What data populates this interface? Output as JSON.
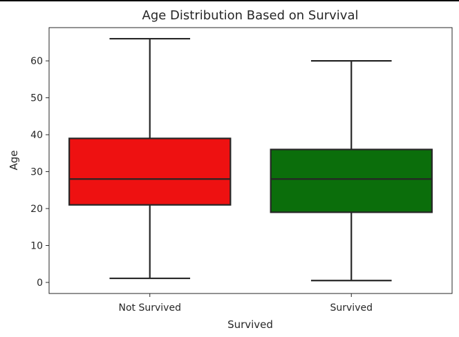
{
  "chart_data": {
    "type": "box",
    "title": "Age Distribution Based on Survival",
    "xlabel": "Survived",
    "ylabel": "Age",
    "ylim": [
      -3,
      69
    ],
    "yticks": [
      0,
      10,
      20,
      30,
      40,
      50,
      60
    ],
    "categories": [
      "Not Survived",
      "Survived"
    ],
    "colors": [
      "#ee1111",
      "#0b6e0b"
    ],
    "grid": false,
    "boxes": [
      {
        "category": "Not Survived",
        "whisker_low": 1.1,
        "q1": 21,
        "median": 28,
        "q3": 39,
        "whisker_high": 66
      },
      {
        "category": "Survived",
        "whisker_low": 0.5,
        "q1": 19,
        "median": 28,
        "q3": 36,
        "whisker_high": 60
      }
    ]
  }
}
